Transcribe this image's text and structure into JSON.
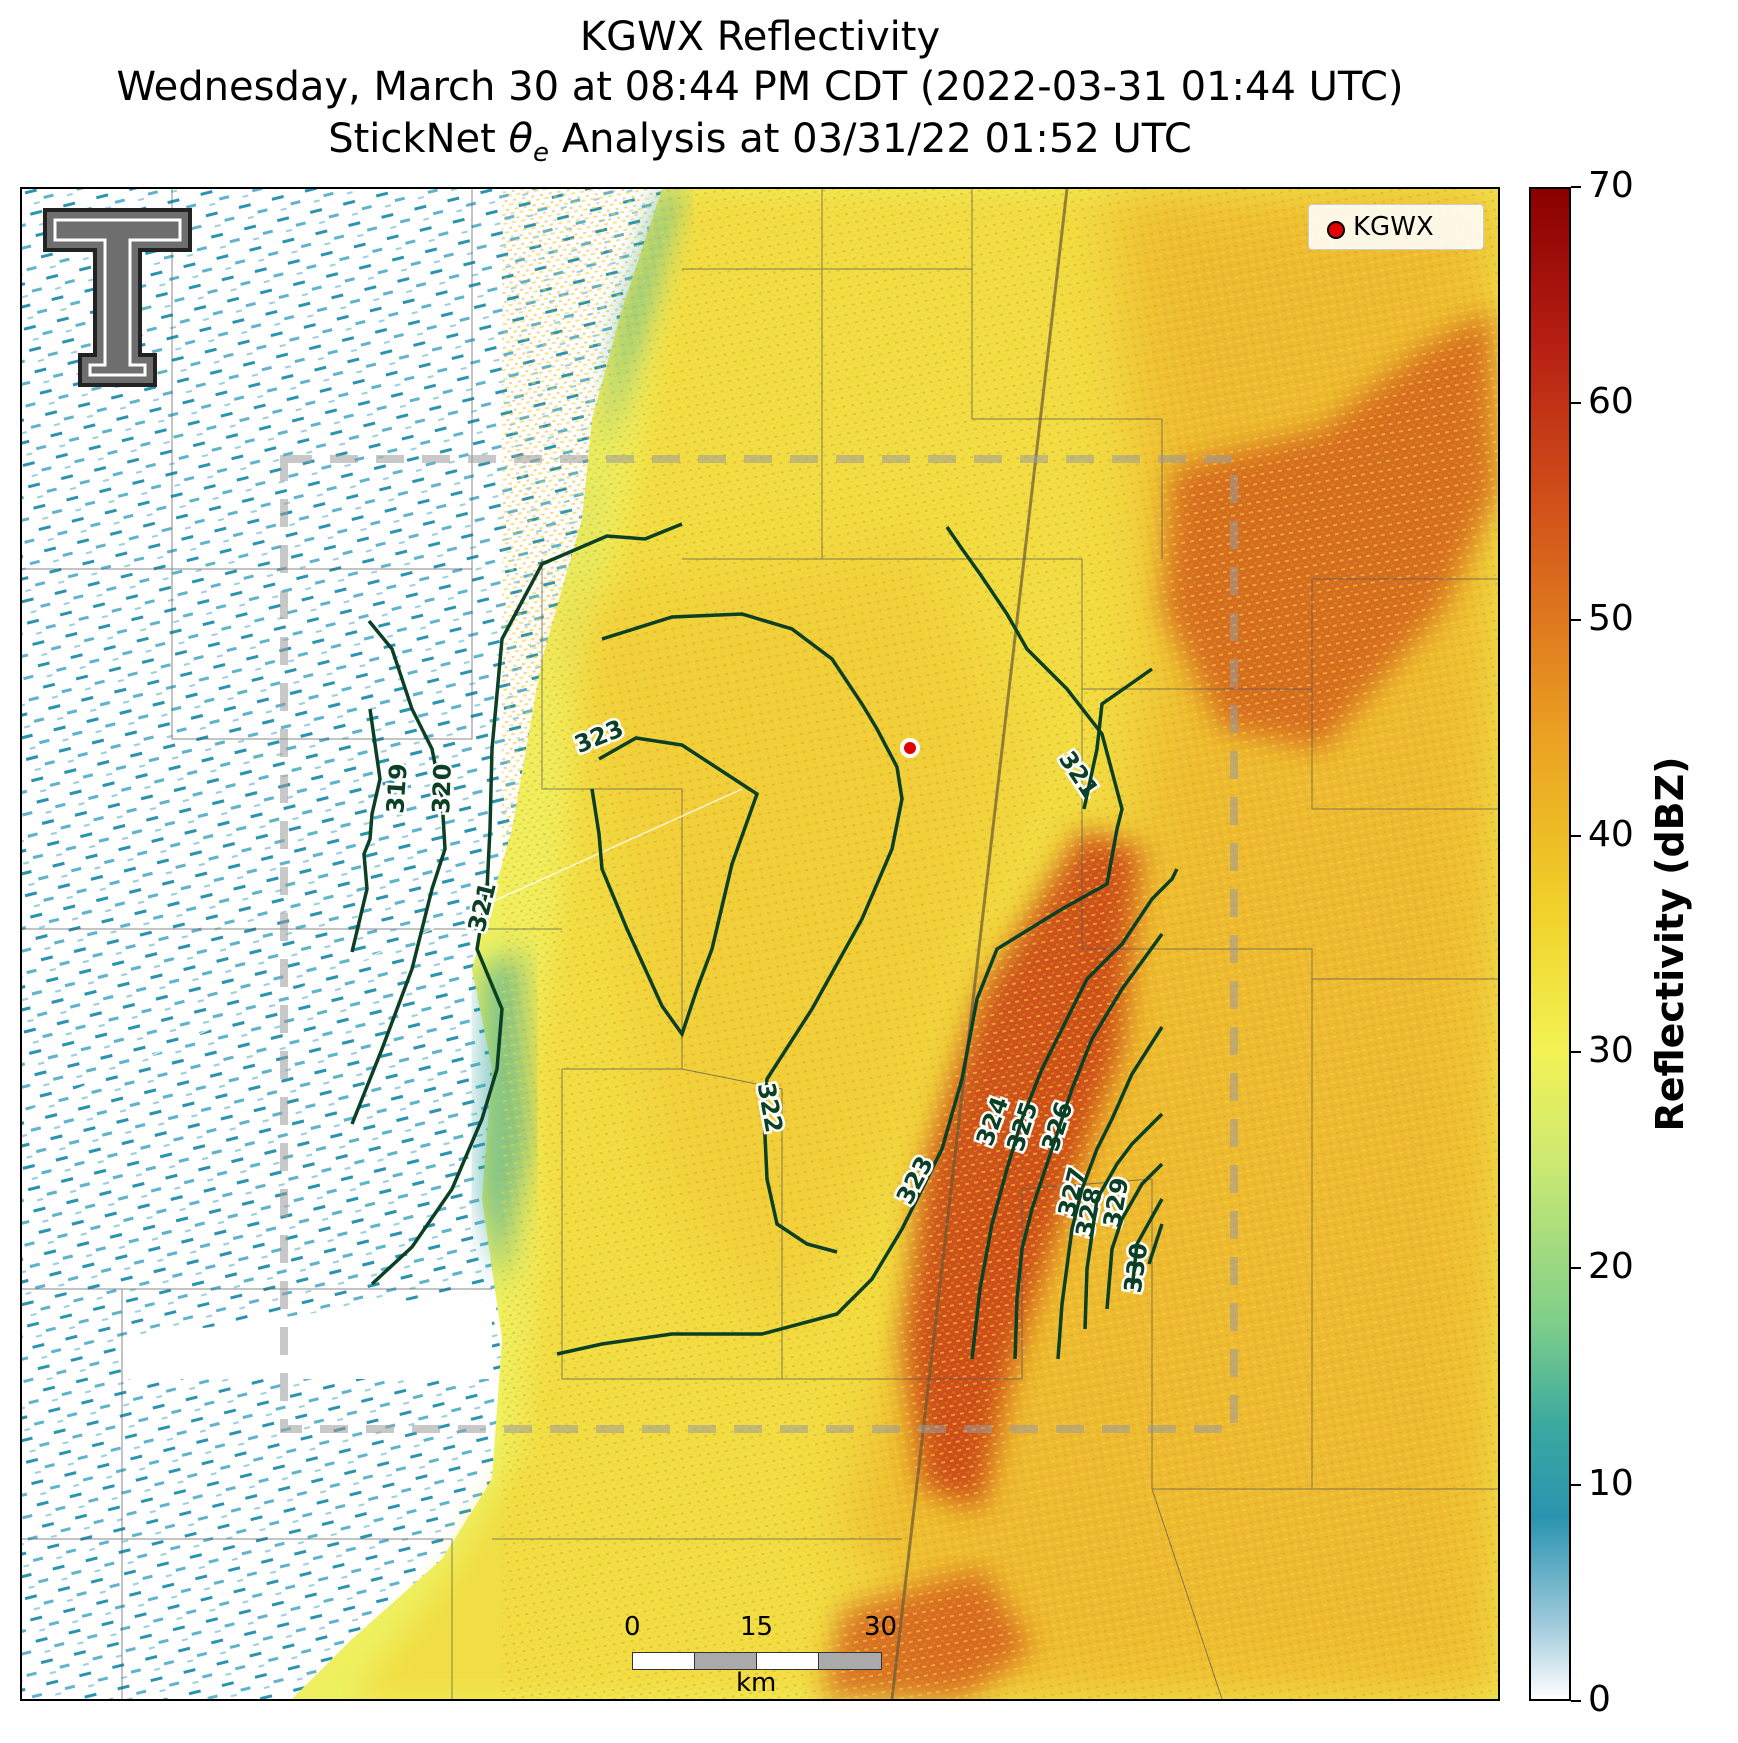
{
  "title": {
    "line1": "KGWX Reflectivity",
    "line2": "Wednesday, March 30 at 08:44 PM CDT (2022-03-31 01:44 UTC)",
    "line3_prefix": "StickNet ",
    "line3_symbol": "θ",
    "line3_sub": "e",
    "line3_suffix": " Analysis at 03/31/22 01:52 UTC"
  },
  "legend": {
    "label": "KGWX",
    "marker_color": "#e00000"
  },
  "colorbar": {
    "label": "Reflectivity (dBZ)",
    "ticks": [
      "0",
      "10",
      "20",
      "30",
      "40",
      "50",
      "60",
      "70"
    ],
    "range": [
      0,
      70
    ]
  },
  "scalebar": {
    "ticks": [
      "0",
      "15",
      "30"
    ],
    "unit": "km"
  },
  "contours": {
    "labels": [
      "319",
      "320",
      "321",
      "321",
      "323",
      "322",
      "323",
      "324",
      "325",
      "326",
      "327",
      "328",
      "329",
      "330",
      "321"
    ]
  },
  "colors": {
    "contour": "#0b4025",
    "clear_air": "#2a94b0",
    "light": "#f2f254",
    "moderate": "#eaa022",
    "heavy": "#c83a18",
    "analysis_box": "#9a9a9a"
  }
}
